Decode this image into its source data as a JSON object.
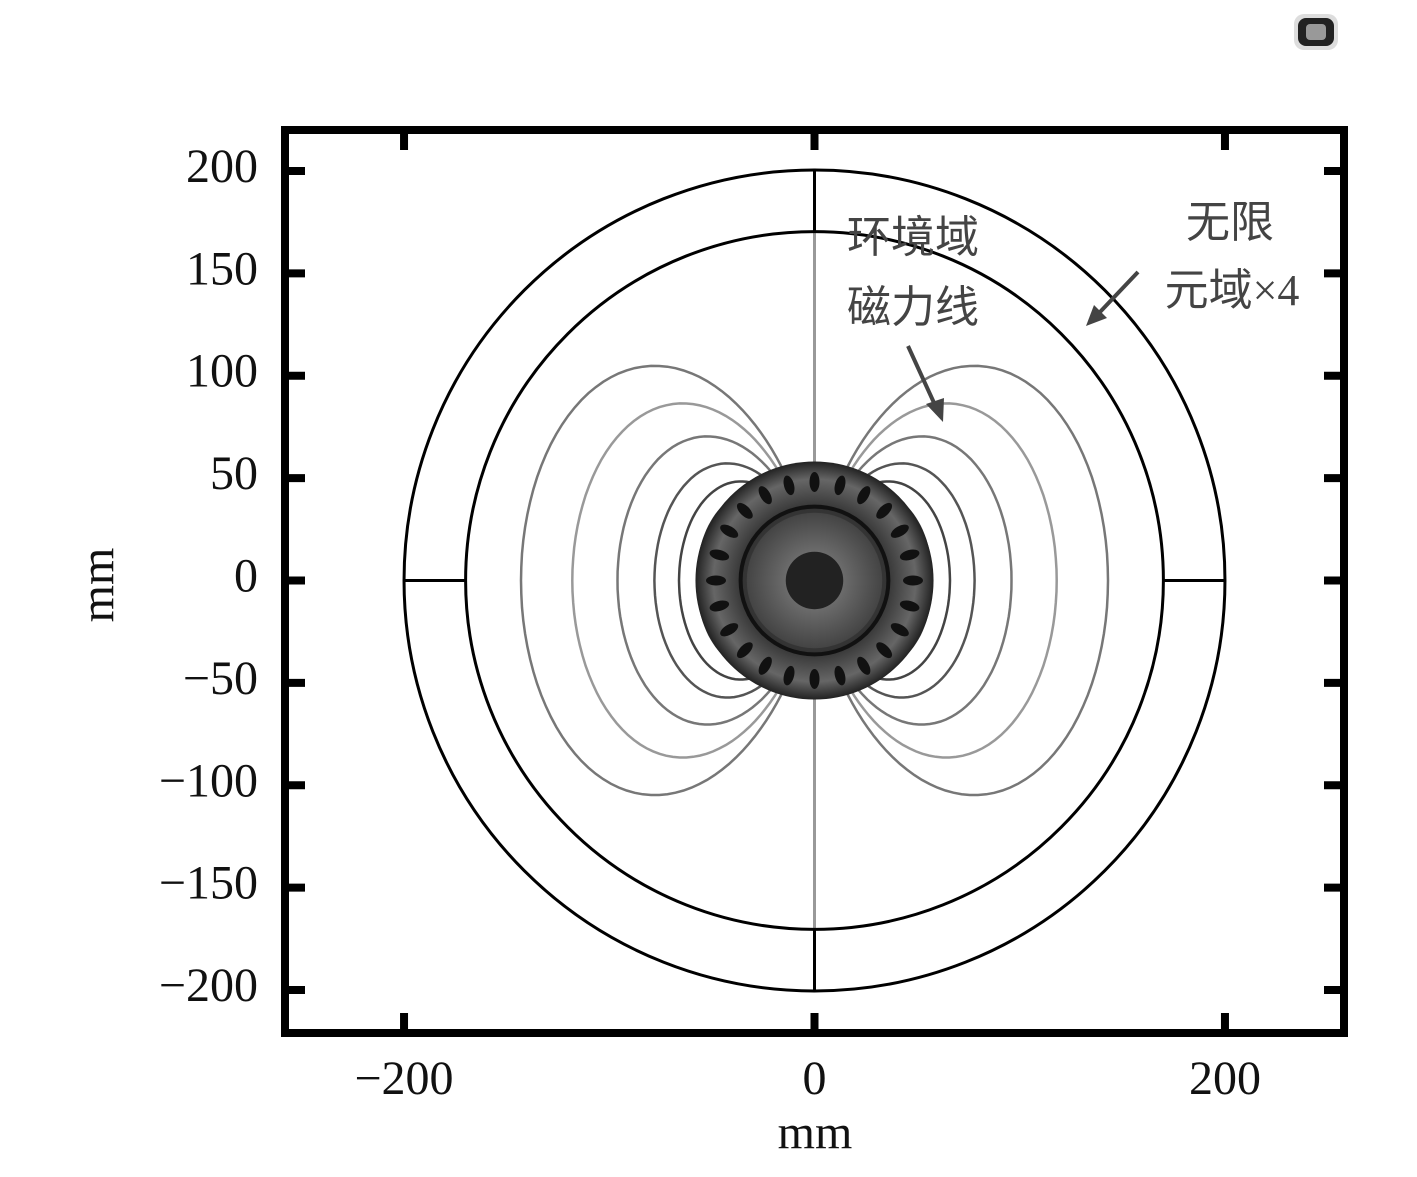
{
  "chart_data": {
    "type": "field-plot",
    "xlabel": "mm",
    "ylabel": "mm",
    "xlim": [
      -258,
      258
    ],
    "ylim": [
      -221,
      220
    ],
    "xticks": [
      {
        "value": -200,
        "label": "−200"
      },
      0,
      200
    ],
    "yticks": [
      200,
      150,
      100,
      50,
      0,
      {
        "value": -50,
        "label": "−50"
      },
      {
        "value": -100,
        "label": "−100"
      },
      {
        "value": -150,
        "label": "−150"
      },
      {
        "value": -200,
        "label": "−200"
      }
    ],
    "annotations": [
      "环境域",
      "磁力线",
      "无限",
      "元域×4"
    ]
  }
}
